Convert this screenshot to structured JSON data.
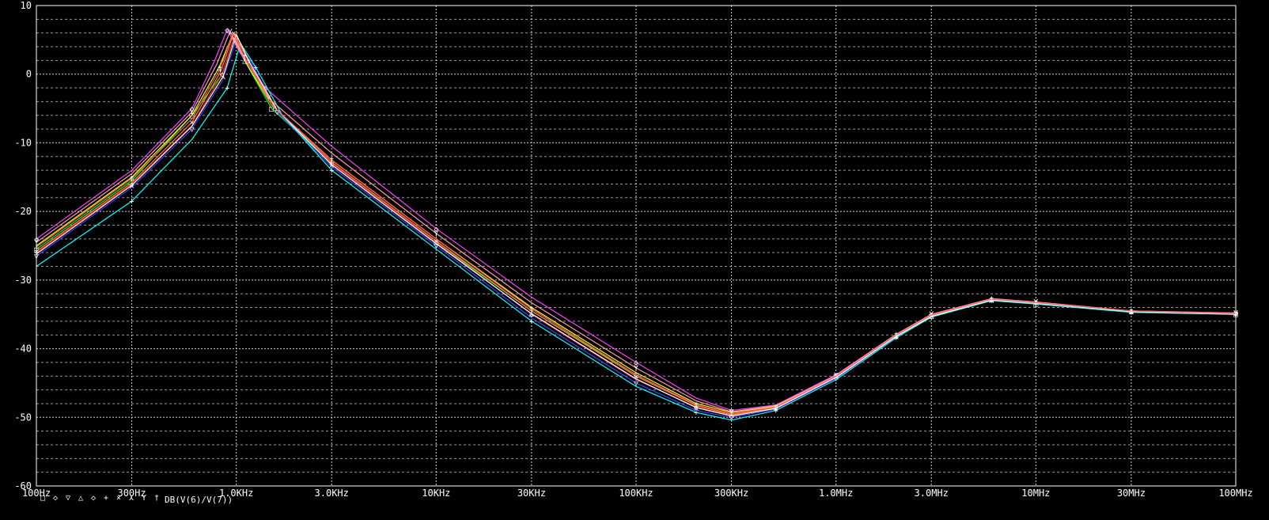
{
  "chart_data": {
    "type": "line",
    "x_scale": "log",
    "xlim": [
      100,
      100000000
    ],
    "ylim": [
      -60,
      10
    ],
    "x_ticks": [
      {
        "value": 100,
        "label": "100Hz"
      },
      {
        "value": 300,
        "label": "300Hz"
      },
      {
        "value": 1000,
        "label": "1.0KHz"
      },
      {
        "value": 3000,
        "label": "3.0KHz"
      },
      {
        "value": 10000,
        "label": "10KHz"
      },
      {
        "value": 30000,
        "label": "30KHz"
      },
      {
        "value": 100000,
        "label": "100KHz"
      },
      {
        "value": 300000,
        "label": "300KHz"
      },
      {
        "value": 1000000,
        "label": "1.0MHz"
      },
      {
        "value": 3000000,
        "label": "3.0MHz"
      },
      {
        "value": 10000000,
        "label": "10MHz"
      },
      {
        "value": 30000000,
        "label": "30MHz"
      },
      {
        "value": 100000000,
        "label": "100MHz"
      }
    ],
    "y_ticks": [
      10,
      0,
      -10,
      -20,
      -30,
      -40,
      -50,
      -60
    ],
    "y_tick_labels": [
      "10",
      "0",
      "-10",
      "-20",
      "-30",
      "-40",
      "-50",
      "-60"
    ],
    "grid": true,
    "legend": {
      "position": "bottom-left",
      "markers": [
        {
          "symbol": "□",
          "color": "#00ff00"
        },
        {
          "symbol": "◇",
          "color": "#ff3030"
        },
        {
          "symbol": "▽",
          "color": "#4040ff"
        },
        {
          "symbol": "△",
          "color": "#ffff00"
        },
        {
          "symbol": "◇",
          "color": "#ff40ff"
        },
        {
          "symbol": "+",
          "color": "#00ffff"
        },
        {
          "symbol": "×",
          "color": "#ff8040"
        },
        {
          "symbol": "⋏",
          "color": "#ffffff"
        },
        {
          "symbol": "Y",
          "color": "#ffa0a0"
        },
        {
          "symbol": "†",
          "color": "#ff6060"
        }
      ],
      "label": "DB(V(6)/V(7))"
    },
    "series": [
      {
        "color": "#00ff00",
        "points": [
          [
            100,
            -25.5
          ],
          [
            300,
            -15.5
          ],
          [
            600,
            -6
          ],
          [
            850,
            0
          ],
          [
            980,
            5.5
          ],
          [
            1100,
            2
          ],
          [
            1500,
            -5
          ],
          [
            3000,
            -13
          ],
          [
            10000,
            -24.5
          ],
          [
            30000,
            -34.5
          ],
          [
            100000,
            -43.8
          ],
          [
            200000,
            -48.2
          ],
          [
            300000,
            -49.6
          ],
          [
            500000,
            -48.5
          ],
          [
            1000000,
            -44
          ],
          [
            2000000,
            -38
          ],
          [
            3000000,
            -35.2
          ],
          [
            6000000,
            -32.9
          ],
          [
            10000000,
            -33.4
          ],
          [
            30000000,
            -34.6
          ],
          [
            100000000,
            -34.9
          ]
        ]
      },
      {
        "color": "#ff3030",
        "points": [
          [
            100,
            -26
          ],
          [
            300,
            -16
          ],
          [
            600,
            -7.5
          ],
          [
            850,
            0
          ],
          [
            990,
            6
          ],
          [
            1150,
            2
          ],
          [
            1600,
            -5.5
          ],
          [
            3000,
            -13
          ],
          [
            10000,
            -24.5
          ],
          [
            30000,
            -35
          ],
          [
            100000,
            -44.5
          ],
          [
            200000,
            -48.5
          ],
          [
            300000,
            -49.7
          ],
          [
            500000,
            -48.6
          ],
          [
            1000000,
            -44.2
          ],
          [
            2000000,
            -38.2
          ],
          [
            3000000,
            -35.3
          ],
          [
            6000000,
            -32.8
          ],
          [
            10000000,
            -33.3
          ],
          [
            30000000,
            -34.5
          ],
          [
            100000000,
            -34.9
          ]
        ]
      },
      {
        "color": "#4040ff",
        "points": [
          [
            100,
            -26.5
          ],
          [
            300,
            -16.5
          ],
          [
            600,
            -8
          ],
          [
            850,
            -1
          ],
          [
            1000,
            5
          ],
          [
            1200,
            1.5
          ],
          [
            1600,
            -5.5
          ],
          [
            3000,
            -13.5
          ],
          [
            10000,
            -25
          ],
          [
            30000,
            -35.5
          ],
          [
            100000,
            -45
          ],
          [
            200000,
            -49
          ],
          [
            300000,
            -50
          ],
          [
            500000,
            -48.8
          ],
          [
            1000000,
            -44.3
          ],
          [
            2000000,
            -38.3
          ],
          [
            3000000,
            -35.3
          ],
          [
            6000000,
            -32.9
          ],
          [
            10000000,
            -33.4
          ],
          [
            30000000,
            -34.6
          ],
          [
            100000000,
            -35
          ]
        ]
      },
      {
        "color": "#ffff00",
        "points": [
          [
            100,
            -25
          ],
          [
            300,
            -15
          ],
          [
            600,
            -6
          ],
          [
            820,
            1
          ],
          [
            950,
            5.5
          ],
          [
            1100,
            2
          ],
          [
            1500,
            -4.5
          ],
          [
            3000,
            -12.5
          ],
          [
            10000,
            -24
          ],
          [
            30000,
            -34
          ],
          [
            100000,
            -43.5
          ],
          [
            200000,
            -48
          ],
          [
            300000,
            -49.3
          ],
          [
            500000,
            -48.4
          ],
          [
            1000000,
            -43.9
          ],
          [
            2000000,
            -38
          ],
          [
            3000000,
            -35.1
          ],
          [
            6000000,
            -32.8
          ],
          [
            10000000,
            -33.3
          ],
          [
            30000000,
            -34.5
          ],
          [
            100000000,
            -34.9
          ]
        ]
      },
      {
        "color": "#ff40ff",
        "points": [
          [
            100,
            -24
          ],
          [
            300,
            -14
          ],
          [
            600,
            -5
          ],
          [
            780,
            2
          ],
          [
            900,
            6.5
          ],
          [
            1050,
            3
          ],
          [
            1400,
            -2
          ],
          [
            3000,
            -10.5
          ],
          [
            10000,
            -22.5
          ],
          [
            30000,
            -32.5
          ],
          [
            100000,
            -42
          ],
          [
            200000,
            -47.2
          ],
          [
            300000,
            -49
          ],
          [
            500000,
            -48.2
          ],
          [
            1000000,
            -43.8
          ],
          [
            2000000,
            -37.9
          ],
          [
            3000000,
            -35
          ],
          [
            6000000,
            -32.7
          ],
          [
            10000000,
            -33.2
          ],
          [
            30000000,
            -34.5
          ],
          [
            100000000,
            -34.8
          ]
        ]
      },
      {
        "color": "#00ffff",
        "points": [
          [
            100,
            -28
          ],
          [
            300,
            -18.5
          ],
          [
            600,
            -9.5
          ],
          [
            900,
            -2
          ],
          [
            1050,
            4.5
          ],
          [
            1250,
            1
          ],
          [
            1700,
            -6
          ],
          [
            3000,
            -14
          ],
          [
            10000,
            -25.5
          ],
          [
            30000,
            -36
          ],
          [
            100000,
            -45.5
          ],
          [
            200000,
            -49.3
          ],
          [
            300000,
            -50.4
          ],
          [
            500000,
            -49
          ],
          [
            1000000,
            -44.5
          ],
          [
            2000000,
            -38.4
          ],
          [
            3000000,
            -35.4
          ],
          [
            6000000,
            -33
          ],
          [
            10000000,
            -33.5
          ],
          [
            30000000,
            -34.7
          ],
          [
            100000000,
            -35
          ]
        ]
      },
      {
        "color": "#ff8040",
        "points": [
          [
            100,
            -25.8
          ],
          [
            300,
            -15.8
          ],
          [
            600,
            -7
          ],
          [
            840,
            0.5
          ],
          [
            970,
            6
          ],
          [
            1120,
            2.5
          ],
          [
            1550,
            -4.8
          ],
          [
            3000,
            -12.8
          ],
          [
            10000,
            -24.3
          ],
          [
            30000,
            -34.5
          ],
          [
            100000,
            -44
          ],
          [
            200000,
            -48.3
          ],
          [
            300000,
            -49.6
          ],
          [
            500000,
            -48.5
          ],
          [
            1000000,
            -44.1
          ],
          [
            2000000,
            -38.1
          ],
          [
            3000000,
            -35.2
          ],
          [
            6000000,
            -32.8
          ],
          [
            10000000,
            -33.3
          ],
          [
            30000000,
            -34.6
          ],
          [
            100000000,
            -34.9
          ]
        ]
      },
      {
        "color": "#ffffff",
        "points": [
          [
            100,
            -26.2
          ],
          [
            300,
            -16.2
          ],
          [
            600,
            -7.6
          ],
          [
            860,
            -0.3
          ],
          [
            1000,
            5.8
          ],
          [
            1160,
            1.8
          ],
          [
            1600,
            -5.2
          ],
          [
            3000,
            -13.2
          ],
          [
            10000,
            -24.7
          ],
          [
            30000,
            -34.9
          ],
          [
            100000,
            -44.4
          ],
          [
            200000,
            -48.6
          ],
          [
            300000,
            -49.8
          ],
          [
            500000,
            -48.7
          ],
          [
            1000000,
            -44.2
          ],
          [
            2000000,
            -38.2
          ],
          [
            3000000,
            -35.3
          ],
          [
            6000000,
            -32.9
          ],
          [
            10000000,
            -33.4
          ],
          [
            30000000,
            -34.6
          ],
          [
            100000000,
            -35
          ]
        ]
      },
      {
        "color": "#ffa0a0",
        "points": [
          [
            100,
            -24.5
          ],
          [
            300,
            -14.5
          ],
          [
            600,
            -5.5
          ],
          [
            800,
            1.5
          ],
          [
            930,
            6.2
          ],
          [
            1080,
            2.8
          ],
          [
            1450,
            -3.5
          ],
          [
            3000,
            -11.5
          ],
          [
            10000,
            -23.2
          ],
          [
            30000,
            -33.3
          ],
          [
            100000,
            -42.8
          ],
          [
            200000,
            -47.6
          ],
          [
            300000,
            -49.2
          ],
          [
            500000,
            -48.3
          ],
          [
            1000000,
            -43.9
          ],
          [
            2000000,
            -37.9
          ],
          [
            3000000,
            -35
          ],
          [
            6000000,
            -32.7
          ],
          [
            10000000,
            -33.2
          ],
          [
            30000000,
            -34.5
          ],
          [
            100000000,
            -34.8
          ]
        ]
      },
      {
        "color": "#ff6060",
        "points": [
          [
            100,
            -25.2
          ],
          [
            300,
            -15.2
          ],
          [
            600,
            -6.5
          ],
          [
            830,
            0.8
          ],
          [
            960,
            6
          ],
          [
            1100,
            2.5
          ],
          [
            1500,
            -4.5
          ],
          [
            3000,
            -12.5
          ],
          [
            10000,
            -24
          ],
          [
            30000,
            -34.2
          ],
          [
            100000,
            -43.8
          ],
          [
            200000,
            -48.2
          ],
          [
            300000,
            -49.5
          ],
          [
            500000,
            -48.5
          ],
          [
            1000000,
            -44
          ],
          [
            2000000,
            -38
          ],
          [
            3000000,
            -35.1
          ],
          [
            6000000,
            -32.8
          ],
          [
            10000000,
            -33.3
          ],
          [
            30000000,
            -34.5
          ],
          [
            100000000,
            -34.9
          ]
        ]
      }
    ]
  }
}
